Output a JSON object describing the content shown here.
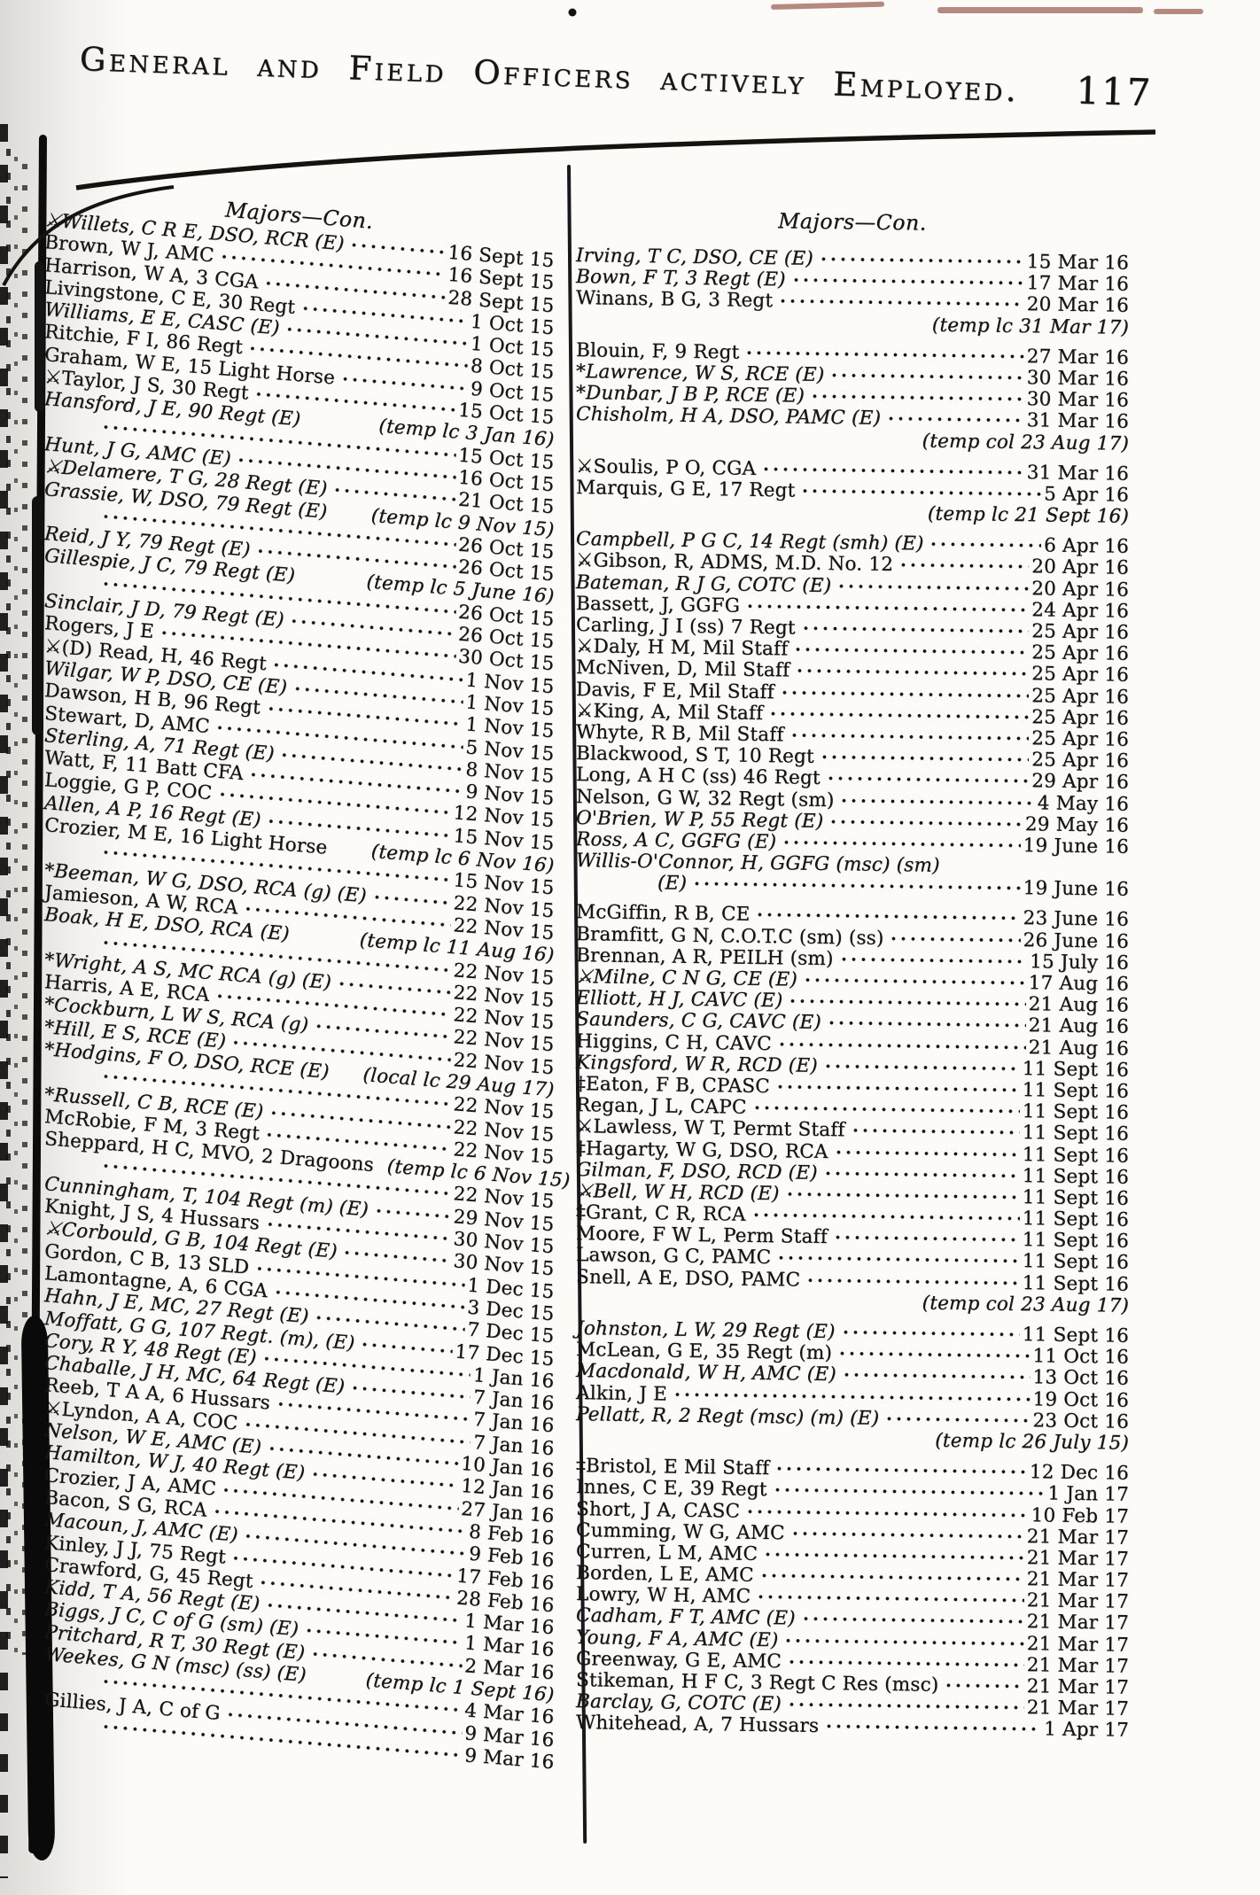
{
  "header": {
    "title": "General and Field Officers actively Employed.",
    "page_number": "117"
  },
  "left_column": {
    "heading": "Majors—Con.",
    "entries": [
      {
        "name": "⚔Willets, C R E, DSO, RCR (E)",
        "date": "16 Sept 15",
        "italic": true
      },
      {
        "name": "Brown, W J, AMC",
        "date": "16 Sept 15"
      },
      {
        "name": "Harrison, W A, 3 CGA",
        "date": "28 Sept 15"
      },
      {
        "name": "Livingstone, C E, 30 Regt",
        "date": "1 Oct 15"
      },
      {
        "name": "Williams, E E, CASC (E)",
        "date": "1 Oct 15",
        "italic": true
      },
      {
        "name": "Ritchie, F I, 86 Regt",
        "date": "8 Oct 15"
      },
      {
        "name": "Graham, W E, 15 Light Horse",
        "date": "9 Oct 15"
      },
      {
        "name": "⚔Taylor, J S, 30 Regt",
        "date": "15 Oct 15"
      },
      {
        "name": "Hansford, J E, 90 Regt (E)",
        "date": "(temp lc 3 Jan 16)",
        "type": "name-note",
        "italic": true
      },
      {
        "name": "",
        "date": "15 Oct 15",
        "type": "dots"
      },
      {
        "name": "Hunt, J G, AMC (E)",
        "date": "16 Oct 15",
        "italic": true
      },
      {
        "name": "⚔Delamere, T G, 28 Regt (E)",
        "date": "21 Oct 15",
        "italic": true
      },
      {
        "name": "Grassie, W, DSO, 79 Regt (E)",
        "date": "(temp lc 9 Nov 15)",
        "type": "name-note",
        "italic": true
      },
      {
        "name": "",
        "date": "26 Oct 15",
        "type": "dots"
      },
      {
        "name": "Reid, J Y, 79 Regt (E)",
        "date": "26 Oct 15",
        "italic": true
      },
      {
        "name": "Gillespie, J C, 79 Regt (E)",
        "date": "(temp lc 5 June 16)",
        "type": "name-note",
        "italic": true
      },
      {
        "name": "",
        "date": "26 Oct 15",
        "type": "dots"
      },
      {
        "name": "Sinclair, J D, 79 Regt (E)",
        "date": "26 Oct 15",
        "italic": true
      },
      {
        "name": "Rogers, J E",
        "date": "30 Oct 15"
      },
      {
        "name": "⚔(D) Read, H, 46 Regt",
        "date": "1 Nov 15"
      },
      {
        "name": "Wilgar, W P, DSO, CE (E)",
        "date": "1 Nov 15",
        "italic": true
      },
      {
        "name": "Dawson, H B, 96 Regt",
        "date": "1 Nov 15"
      },
      {
        "name": "Stewart, D, AMC",
        "date": "5 Nov 15"
      },
      {
        "name": "Sterling, A, 71 Regt (E)",
        "date": "8 Nov 15",
        "italic": true
      },
      {
        "name": "Watt, F, 11 Batt CFA",
        "date": "9 Nov 15"
      },
      {
        "name": "Loggie, G P, COC",
        "date": "12 Nov 15"
      },
      {
        "name": "Allen, A P, 16 Regt (E)",
        "date": "15 Nov 15",
        "italic": true
      },
      {
        "name": "Crozier, M E, 16 Light Horse",
        "date": "(temp lc 6 Nov 16)",
        "type": "name-note"
      },
      {
        "name": "",
        "date": "15 Nov 15",
        "type": "dots"
      },
      {
        "name": "*Beeman, W G, DSO, RCA (g) (E)",
        "date": "22 Nov 15",
        "italic": true
      },
      {
        "name": "Jamieson, A W, RCA",
        "date": "22 Nov 15"
      },
      {
        "name": "Boak, H E, DSO, RCA (E)",
        "date": "(temp lc 11 Aug 16)",
        "type": "name-note",
        "italic": true
      },
      {
        "name": "",
        "date": "22 Nov 15",
        "type": "dots"
      },
      {
        "name": "*Wright, A S, MC RCA (g) (E)",
        "date": "22 Nov 15",
        "italic": true
      },
      {
        "name": "Harris, A E, RCA",
        "date": "22 Nov 15"
      },
      {
        "name": "*Cockburn, L W S, RCA (g)",
        "date": "22 Nov 15",
        "italic": true
      },
      {
        "name": "*Hill, E S, RCE (E)",
        "date": "22 Nov 15",
        "italic": true
      },
      {
        "name": "*Hodgins, F O, DSO, RCE (E)",
        "date": "(local lc 29 Aug 17)",
        "type": "name-note",
        "italic": true
      },
      {
        "name": "",
        "date": "22 Nov 15",
        "type": "dots"
      },
      {
        "name": "*Russell, C B, RCE (E)",
        "date": "22 Nov 15",
        "italic": true
      },
      {
        "name": "McRobie, F M, 3 Regt",
        "date": "22 Nov 15"
      },
      {
        "name": "Sheppard, H C, MVO, 2 Dragoons",
        "date": "(temp lc 6 Nov 15)",
        "type": "name-note"
      },
      {
        "name": "",
        "date": "22 Nov 15",
        "type": "dots"
      },
      {
        "name": "Cunningham, T, 104 Regt (m) (E)",
        "date": "29 Nov 15",
        "italic": true
      },
      {
        "name": "Knight, J S, 4 Hussars",
        "date": "30 Nov 15"
      },
      {
        "name": "⚔Corbould, G B, 104 Regt (E)",
        "date": "30 Nov 15",
        "italic": true
      },
      {
        "name": "Gordon, C B, 13 SLD",
        "date": "1 Dec 15"
      },
      {
        "name": "Lamontagne, A, 6 CGA",
        "date": "3 Dec 15"
      },
      {
        "name": "Hahn, J E, MC, 27 Regt (E)",
        "date": "7 Dec 15",
        "italic": true
      },
      {
        "name": "Moffatt, G G, 107 Regt. (m), (E)",
        "date": "17 Dec 15",
        "italic": true
      },
      {
        "name": "Cory, R Y, 48 Regt (E)",
        "date": "1 Jan 16",
        "italic": true
      },
      {
        "name": "Chaballe, J H, MC, 64 Regt (E)",
        "date": "7 Jan 16",
        "italic": true
      },
      {
        "name": "Reeb, T A A, 6 Hussars",
        "date": "7 Jan 16"
      },
      {
        "name": "⚔Lyndon, A A, COC",
        "date": "7 Jan 16"
      },
      {
        "name": "Nelson, W E, AMC (E)",
        "date": "10 Jan 16",
        "italic": true
      },
      {
        "name": "Hamilton, W J, 40 Regt (E)",
        "date": "12 Jan 16",
        "italic": true
      },
      {
        "name": "Crozier, J A, AMC",
        "date": "27 Jan 16"
      },
      {
        "name": "Bacon, S G, RCA",
        "date": "8 Feb 16"
      },
      {
        "name": "Macoun, J, AMC (E)",
        "date": "9 Feb 16",
        "italic": true
      },
      {
        "name": "Kinley, J J, 75 Regt",
        "date": "17 Feb 16"
      },
      {
        "name": "Crawford, G, 45 Regt",
        "date": "28 Feb 16"
      },
      {
        "name": "Kidd, T A, 56 Regt (E)",
        "date": "1 Mar 16",
        "italic": true
      },
      {
        "name": "Biggs, J C, C of G (sm) (E)",
        "date": "1 Mar 16",
        "italic": true
      },
      {
        "name": "Pritchard, R T, 30 Regt (E)",
        "date": "2 Mar 16",
        "italic": true
      },
      {
        "name": "Weekes, G N (msc) (ss) (E)",
        "date": "(temp lc 1 Sept 16)",
        "type": "name-note",
        "italic": true
      },
      {
        "name": "",
        "date": "4 Mar 16",
        "type": "dots"
      },
      {
        "name": "Gillies, J A, C of G",
        "date": "9 Mar 16"
      },
      {
        "name": "",
        "date": "9 Mar 16",
        "type": "dots"
      }
    ]
  },
  "right_column": {
    "heading": "Majors—Con.",
    "entries": [
      {
        "name": "Irving, T C, DSO, CE (E)",
        "date": "15 Mar 16",
        "italic": true
      },
      {
        "name": "Bown, F T, 3 Regt (E)",
        "date": "17 Mar 16",
        "italic": true
      },
      {
        "name": "Winans, B G, 3 Regt",
        "date": "20 Mar 16"
      },
      {
        "date": "(temp lc 31 Mar 17)",
        "type": "note"
      },
      {
        "name": "Blouin, F, 9 Regt",
        "date": "27 Mar 16",
        "gap": true
      },
      {
        "name": "*Lawrence, W S, RCE (E)",
        "date": "30 Mar 16",
        "italic": true
      },
      {
        "name": "*Dunbar, J B P, RCE (E)",
        "date": "30 Mar 16",
        "italic": true
      },
      {
        "name": "Chisholm, H A, DSO, PAMC (E)",
        "date": "31 Mar 16",
        "italic": true
      },
      {
        "date": "(temp col 23 Aug 17)",
        "type": "note"
      },
      {
        "name": "⚔Soulis, P O, CGA",
        "date": "31 Mar 16",
        "gap": true
      },
      {
        "name": "Marquis, G E, 17 Regt",
        "date": "5 Apr 16"
      },
      {
        "date": "(temp lc 21 Sept 16)",
        "type": "note"
      },
      {
        "name": "Campbell, P G C, 14 Regt (smh) (E)",
        "date": "6 Apr 16",
        "italic": true,
        "gap": true
      },
      {
        "name": "⚔Gibson, R, ADMS, M.D. No. 12",
        "date": "20 Apr 16"
      },
      {
        "name": "Bateman, R J G, COTC (E)",
        "date": "20 Apr 16",
        "italic": true
      },
      {
        "name": "Bassett, J, GGFG",
        "date": "24 Apr 16"
      },
      {
        "name": "Carling, J I (ss) 7 Regt",
        "date": "25 Apr 16"
      },
      {
        "name": "⚔Daly, H M, Mil Staff",
        "date": "25 Apr 16"
      },
      {
        "name": "McNiven, D, Mil Staff",
        "date": "25 Apr 16"
      },
      {
        "name": "Davis, F E, Mil Staff",
        "date": "25 Apr 16"
      },
      {
        "name": "⚔King, A, Mil Staff",
        "date": "25 Apr 16"
      },
      {
        "name": "Whyte, R B, Mil Staff",
        "date": "25 Apr 16"
      },
      {
        "name": "Blackwood, S T, 10 Regt",
        "date": "25 Apr 16"
      },
      {
        "name": "Long, A H C (ss) 46 Regt",
        "date": "29 Apr 16"
      },
      {
        "name": "Nelson, G W, 32 Regt (sm)",
        "date": "4 May 16"
      },
      {
        "name": "O'Brien, W P, 55 Regt (E)",
        "date": "29 May 16",
        "italic": true
      },
      {
        "name": "Ross, A C, GGFG (E)",
        "date": "19 June 16",
        "italic": true
      },
      {
        "name": "Willis-O'Connor, H, GGFG (msc) (sm)",
        "type": "wrap",
        "italic": true
      },
      {
        "name": "(E)",
        "date": "19 June 16",
        "italic": true,
        "indent": true
      },
      {
        "name": "McGiffin, R B, CE",
        "date": "23 June 16",
        "gap": true
      },
      {
        "name": "Bramfitt, G N, C.O.T.C (sm) (ss)",
        "date": "26 June 16"
      },
      {
        "name": "Brennan, A R, PEILH (sm)",
        "date": "15 July 16"
      },
      {
        "name": "⚔Milne, C N G, CE (E)",
        "date": "17 Aug 16",
        "italic": true
      },
      {
        "name": "Elliott, H J, CAVC (E)",
        "date": "21 Aug 16",
        "italic": true
      },
      {
        "name": "Saunders, C G, CAVC (E)",
        "date": "21 Aug 16",
        "italic": true
      },
      {
        "name": "Higgins, C H, CAVC",
        "date": "21 Aug 16"
      },
      {
        "name": "Kingsford, W R, RCD (E)",
        "date": "11 Sept 16",
        "italic": true
      },
      {
        "name": "‡Eaton, F B, CPASC",
        "date": "11 Sept 16"
      },
      {
        "name": "Regan, J L, CAPC",
        "date": "11 Sept 16"
      },
      {
        "name": "⚔Lawless, W T, Permt Staff",
        "date": "11 Sept 16"
      },
      {
        "name": "‡Hagarty, W G, DSO, RCA",
        "date": "11 Sept 16"
      },
      {
        "name": "Gilman, F, DSO, RCD (E)",
        "date": "11 Sept 16",
        "italic": true
      },
      {
        "name": "⚔Bell, W H, RCD (E)",
        "date": "11 Sept 16",
        "italic": true
      },
      {
        "name": "‡Grant, C R, RCA",
        "date": "11 Sept 16"
      },
      {
        "name": "Moore, F W L, Perm Staff",
        "date": "11 Sept 16"
      },
      {
        "name": "Lawson, G C, PAMC",
        "date": "11 Sept 16"
      },
      {
        "name": "Snell, A E, DSO, PAMC",
        "date": "11 Sept 16"
      },
      {
        "date": "(temp col 23 Aug 17)",
        "type": "note"
      },
      {
        "name": "Johnston, L W, 29 Regt (E)",
        "date": "11 Sept 16",
        "italic": true,
        "gap": true
      },
      {
        "name": "McLean, G E, 35 Regt (m)",
        "date": "11 Oct 16"
      },
      {
        "name": "Macdonald, W H, AMC (E)",
        "date": "13 Oct 16",
        "italic": true
      },
      {
        "name": "Alkin, J E",
        "date": "19 Oct 16"
      },
      {
        "name": "Pellatt, R, 2 Regt (msc) (m) (E)",
        "date": "23 Oct 16",
        "italic": true
      },
      {
        "date": "(temp lc 26 July 15)",
        "type": "note"
      },
      {
        "name": "‡Bristol, E Mil Staff",
        "date": "12 Dec 16",
        "gap": true
      },
      {
        "name": "Innes, C E, 39 Regt",
        "date": "1 Jan 17"
      },
      {
        "name": "Short, J A, CASC",
        "date": "10 Feb 17"
      },
      {
        "name": "Cumming, W G, AMC",
        "date": "21 Mar 17"
      },
      {
        "name": "Curren, L M, AMC",
        "date": "21 Mar 17"
      },
      {
        "name": "Borden, L E, AMC",
        "date": "21 Mar 17"
      },
      {
        "name": "Lowry, W H, AMC",
        "date": "21 Mar 17"
      },
      {
        "name": "Cadham, F T, AMC (E)",
        "date": "21 Mar 17",
        "italic": true
      },
      {
        "name": "Young, F A, AMC (E)",
        "date": "21 Mar 17",
        "italic": true
      },
      {
        "name": "Greenway, G E, AMC",
        "date": "21 Mar 17"
      },
      {
        "name": "Stikeman, H F C, 3 Regt C Res (msc)",
        "date": "21 Mar 17"
      },
      {
        "name": "Barclay, G, COTC (E)",
        "date": "21 Mar 17",
        "italic": true
      },
      {
        "name": "Whitehead, A, 7 Hussars",
        "date": "1 Apr 17"
      }
    ]
  }
}
